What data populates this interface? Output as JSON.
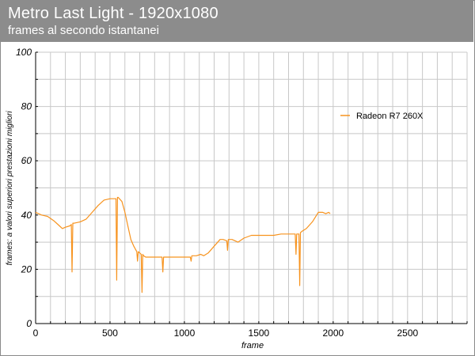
{
  "header": {
    "title": "Metro Last Light - 1920x1080",
    "subtitle": "frames al secondo istantanei"
  },
  "colors": {
    "header_bg": "#8c8c8c",
    "series": "#f7931e",
    "grid": "#c8c8c8"
  },
  "chart_data": {
    "type": "line",
    "title": "Metro Last Light - 1920x1080",
    "subtitle": "frames al secondo istantanei",
    "xlabel": "frame",
    "ylabel": "frames: a valori superiori prestazioni migliori",
    "xlim": [
      0,
      2900
    ],
    "ylim": [
      0,
      100
    ],
    "x_ticks": [
      0,
      500,
      1000,
      1500,
      2000,
      2500
    ],
    "x_tick_labels": [
      "0",
      "500",
      "1000",
      "1500",
      "2000",
      "2500"
    ],
    "x_minor_step": 100,
    "y_ticks": [
      0,
      20,
      40,
      60,
      80,
      100
    ],
    "y_tick_labels": [
      "0",
      "20",
      "40",
      "60",
      "80",
      "100"
    ],
    "y_minor_step": 10,
    "grid": true,
    "legend_position": "top-right",
    "series": [
      {
        "name": "Radeon R7 260X",
        "x": [
          0,
          40,
          80,
          120,
          160,
          180,
          200,
          230,
          240,
          245,
          250,
          260,
          300,
          340,
          380,
          420,
          460,
          500,
          540,
          545,
          550,
          555,
          580,
          600,
          620,
          640,
          660,
          670,
          680,
          685,
          690,
          700,
          710,
          715,
          720,
          725,
          740,
          780,
          820,
          850,
          855,
          860,
          900,
          950,
          1000,
          1040,
          1045,
          1050,
          1080,
          1110,
          1130,
          1160,
          1200,
          1240,
          1260,
          1285,
          1290,
          1295,
          1320,
          1360,
          1400,
          1450,
          1500,
          1550,
          1600,
          1650,
          1700,
          1745,
          1750,
          1755,
          1770,
          1775,
          1780,
          1790,
          1820,
          1860,
          1900,
          1930,
          1950,
          1970,
          1980
        ],
        "values": [
          41,
          40,
          39.5,
          38,
          36,
          35,
          35.5,
          36,
          36.5,
          19,
          37,
          37,
          37.5,
          38.5,
          41,
          43.5,
          45.5,
          46,
          46,
          16,
          46.5,
          46.5,
          45,
          41,
          36,
          31,
          28.5,
          27.5,
          26.5,
          23,
          26.5,
          26,
          25.5,
          11.5,
          25.5,
          25,
          24.5,
          24.5,
          24.5,
          24.5,
          19,
          24.5,
          24.5,
          24.5,
          24.5,
          24.5,
          23,
          25,
          25,
          25.5,
          25,
          26,
          28.5,
          31,
          31,
          30.5,
          27,
          31,
          31,
          30,
          31.5,
          32.5,
          32.5,
          32.5,
          32.5,
          33,
          33,
          33,
          25.5,
          33,
          33,
          14,
          33.5,
          34,
          35,
          37.5,
          41,
          41,
          40.5,
          41,
          40.5
        ]
      }
    ]
  }
}
